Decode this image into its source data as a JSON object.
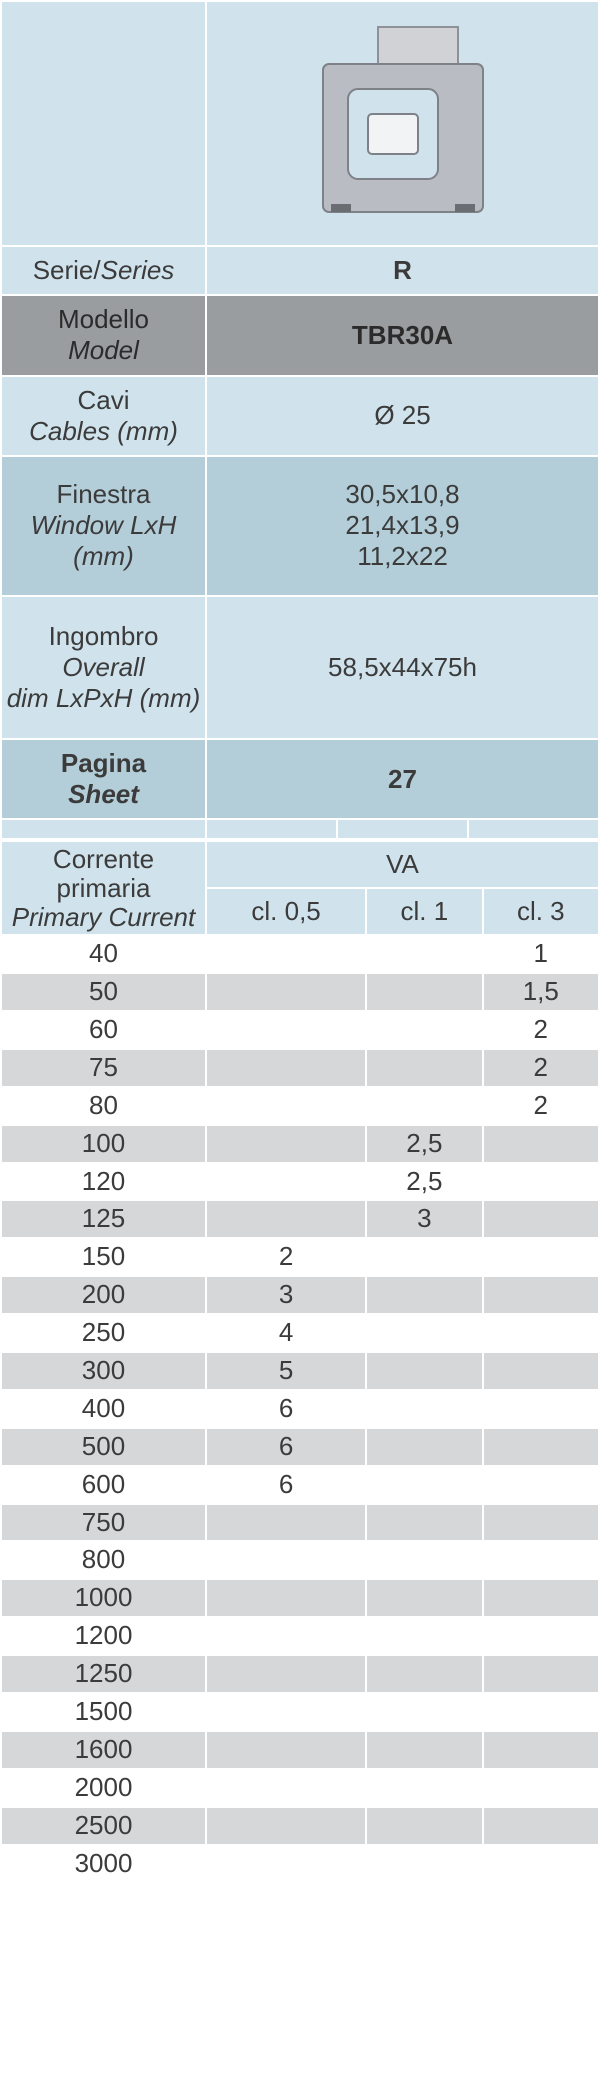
{
  "colors": {
    "lightblue": "#d0e3ec",
    "darkblue": "#b3ced8",
    "grayband": "#9a9da0",
    "altrow": "#d5d7d8",
    "text": "#3b3b3b",
    "border": "#ffffff"
  },
  "specs": {
    "series": {
      "it": "Serie/",
      "en": "Series",
      "value": "R",
      "bold": true
    },
    "model": {
      "it": "Modello",
      "en": "Model",
      "value": "TBR30A",
      "bold": true
    },
    "cables": {
      "it": "Cavi",
      "en": "Cables (mm)",
      "value": "Ø 25"
    },
    "window": {
      "it": "Finestra",
      "en": "Window LxH",
      "en2": "(mm)",
      "valueLines": [
        "30,5x10,8",
        "21,4x13,9",
        "11,2x22"
      ]
    },
    "overall": {
      "it": "Ingombro",
      "en": "Overall",
      "en2": "dim LxPxH (mm)",
      "value": "58,5x44x75h"
    },
    "page": {
      "it": "Pagina",
      "en": "Sheet",
      "value": "27"
    }
  },
  "dataHeader": {
    "current_it": "Corrente primaria",
    "current_en": "Primary Current",
    "va": "VA",
    "classes": [
      "cl. 0,5",
      "cl. 1",
      "cl. 3"
    ]
  },
  "rows": [
    {
      "pc": "40",
      "c05": "",
      "c1": "",
      "c3": "1"
    },
    {
      "pc": "50",
      "c05": "",
      "c1": "",
      "c3": "1,5"
    },
    {
      "pc": "60",
      "c05": "",
      "c1": "",
      "c3": "2"
    },
    {
      "pc": "75",
      "c05": "",
      "c1": "",
      "c3": "2"
    },
    {
      "pc": "80",
      "c05": "",
      "c1": "",
      "c3": "2"
    },
    {
      "pc": "100",
      "c05": "",
      "c1": "2,5",
      "c3": ""
    },
    {
      "pc": "120",
      "c05": "",
      "c1": "2,5",
      "c3": ""
    },
    {
      "pc": "125",
      "c05": "",
      "c1": "3",
      "c3": ""
    },
    {
      "pc": "150",
      "c05": "2",
      "c1": "",
      "c3": ""
    },
    {
      "pc": "200",
      "c05": "3",
      "c1": "",
      "c3": ""
    },
    {
      "pc": "250",
      "c05": "4",
      "c1": "",
      "c3": ""
    },
    {
      "pc": "300",
      "c05": "5",
      "c1": "",
      "c3": ""
    },
    {
      "pc": "400",
      "c05": "6",
      "c1": "",
      "c3": ""
    },
    {
      "pc": "500",
      "c05": "6",
      "c1": "",
      "c3": ""
    },
    {
      "pc": "600",
      "c05": "6",
      "c1": "",
      "c3": ""
    },
    {
      "pc": "750",
      "c05": "",
      "c1": "",
      "c3": ""
    },
    {
      "pc": "800",
      "c05": "",
      "c1": "",
      "c3": ""
    },
    {
      "pc": "1000",
      "c05": "",
      "c1": "",
      "c3": ""
    },
    {
      "pc": "1200",
      "c05": "",
      "c1": "",
      "c3": ""
    },
    {
      "pc": "1250",
      "c05": "",
      "c1": "",
      "c3": ""
    },
    {
      "pc": "1500",
      "c05": "",
      "c1": "",
      "c3": ""
    },
    {
      "pc": "1600",
      "c05": "",
      "c1": "",
      "c3": ""
    },
    {
      "pc": "2000",
      "c05": "",
      "c1": "",
      "c3": ""
    },
    {
      "pc": "2500",
      "c05": "",
      "c1": "",
      "c3": ""
    },
    {
      "pc": "3000",
      "c05": "",
      "c1": "",
      "c3": ""
    }
  ]
}
